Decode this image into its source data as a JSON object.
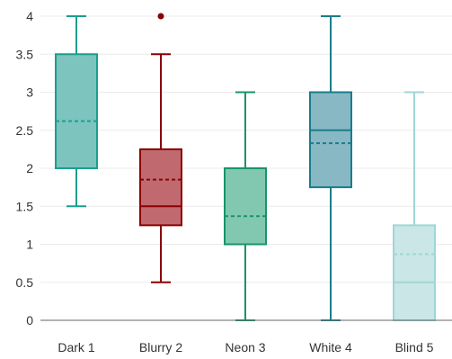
{
  "chart_data": {
    "type": "box",
    "title": "",
    "xlabel": "",
    "ylabel": "",
    "ylim": [
      0,
      4
    ],
    "yticks": [
      "0",
      "0.5",
      "1",
      "1.5",
      "2",
      "2.5",
      "3",
      "3.5",
      "4"
    ],
    "grid": true,
    "categories": [
      "Dark 1",
      "Blurry 2",
      "Neon 3",
      "White 4",
      "Blind 5"
    ],
    "boxes": [
      {
        "category": "Dark 1",
        "color": "#1b9e8e",
        "fill": "#7cc4bd",
        "min": 1.5,
        "q1": 2.0,
        "median": 2.0,
        "mean": 2.62,
        "q3": 3.5,
        "max": 4.0,
        "outliers": []
      },
      {
        "category": "Blurry 2",
        "color": "#8b0000",
        "fill": "#c06a70",
        "min": 0.5,
        "q1": 1.25,
        "median": 1.5,
        "mean": 1.85,
        "q3": 2.25,
        "max": 3.5,
        "outliers": [
          4.0
        ]
      },
      {
        "category": "Neon 3",
        "color": "#17946a",
        "fill": "#82c8b0",
        "min": 0.0,
        "q1": 1.0,
        "median": 1.0,
        "mean": 1.37,
        "q3": 2.0,
        "max": 3.0,
        "outliers": []
      },
      {
        "category": "White 4",
        "color": "#1a7d8a",
        "fill": "#88b8c4",
        "min": 0.0,
        "q1": 1.75,
        "median": 2.5,
        "mean": 2.33,
        "q3": 3.0,
        "max": 4.0,
        "outliers": []
      },
      {
        "category": "Blind 5",
        "color": "#9ed6d6",
        "fill": "#cbe6e6",
        "min": 0.0,
        "q1": 0.0,
        "median": 0.5,
        "mean": 0.87,
        "q3": 1.25,
        "max": 3.0,
        "outliers": []
      }
    ]
  }
}
